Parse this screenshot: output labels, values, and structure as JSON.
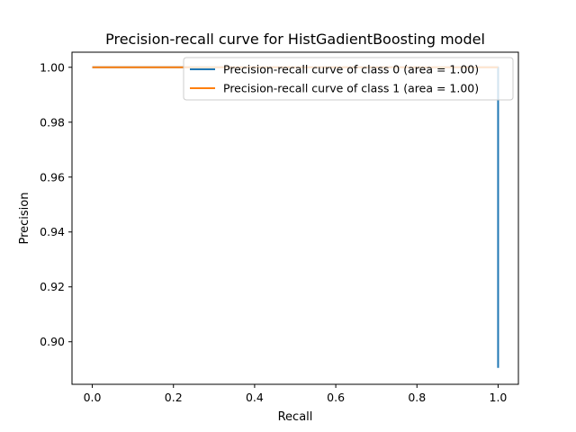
{
  "chart_data": {
    "type": "line",
    "title": "Precision-recall curve for HistGadientBoosting model",
    "xlabel": "Recall",
    "ylabel": "Precision",
    "xlim": [
      -0.05,
      1.05
    ],
    "ylim": [
      0.8845,
      1.0055
    ],
    "xticks": [
      0.0,
      0.2,
      0.4,
      0.6,
      0.8,
      1.0
    ],
    "xtick_labels": [
      "0.0",
      "0.2",
      "0.4",
      "0.6",
      "0.8",
      "1.0"
    ],
    "yticks": [
      0.9,
      0.92,
      0.94,
      0.96,
      0.98,
      1.0
    ],
    "ytick_labels": [
      "0.90",
      "0.92",
      "0.94",
      "0.96",
      "0.98",
      "1.00"
    ],
    "grid": false,
    "legend_position": "top-right",
    "series": [
      {
        "name": "Precision-recall curve of class 0 (area = 1.00)",
        "color": "#1f77b4",
        "x": [
          0.0,
          1.0,
          1.0
        ],
        "y": [
          1.0,
          1.0,
          0.8905
        ]
      },
      {
        "name": "Precision-recall curve of class 1 (area = 1.00)",
        "color": "#ff7f0e",
        "x": [
          0.0,
          1.0
        ],
        "y": [
          1.0,
          1.0
        ]
      }
    ]
  }
}
